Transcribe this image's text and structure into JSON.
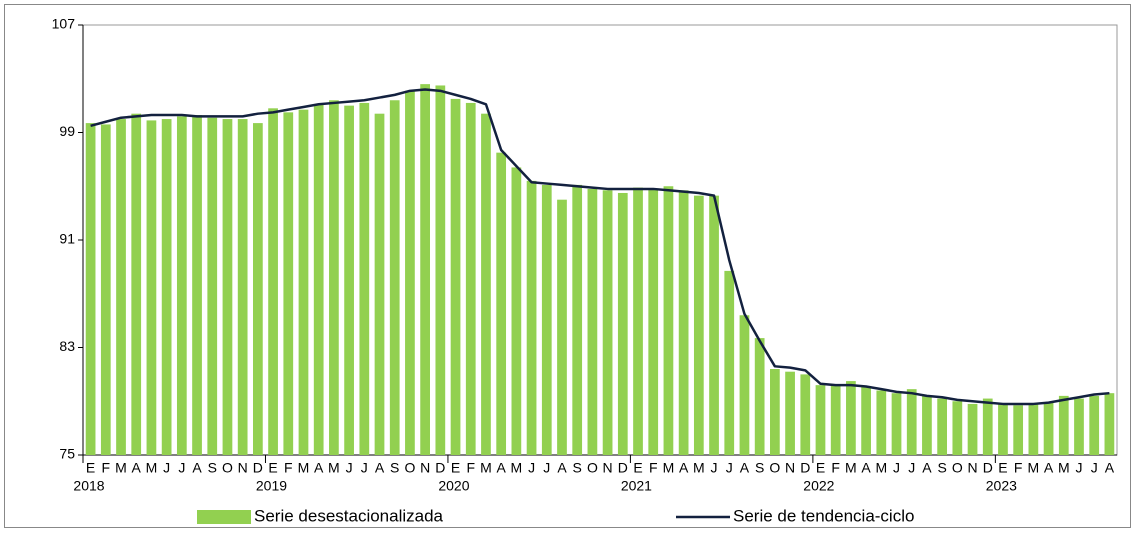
{
  "chart_data": {
    "type": "combo",
    "categories": [
      "E",
      "F",
      "M",
      "A",
      "M",
      "J",
      "J",
      "A",
      "S",
      "O",
      "N",
      "D",
      "E",
      "F",
      "M",
      "A",
      "M",
      "J",
      "J",
      "A",
      "S",
      "O",
      "N",
      "D",
      "E",
      "F",
      "M",
      "A",
      "M",
      "J",
      "J",
      "A",
      "S",
      "O",
      "N",
      "D",
      "E",
      "F",
      "M",
      "A",
      "M",
      "J",
      "J",
      "A",
      "S",
      "O",
      "N",
      "D",
      "E",
      "F",
      "M",
      "A",
      "M",
      "J",
      "J",
      "A",
      "S",
      "O",
      "N",
      "D",
      "E",
      "F",
      "M",
      "A",
      "M",
      "J",
      "J",
      "A"
    ],
    "years": [
      "2018",
      "2019",
      "2020",
      "2021",
      "2022",
      "2023"
    ],
    "ylim": [
      75,
      107
    ],
    "yticks": [
      75,
      83,
      91,
      99,
      107
    ],
    "series": [
      {
        "name": "Serie desestacionalizada",
        "type": "bar",
        "color": "#92d050",
        "values": [
          99.7,
          99.6,
          100.0,
          100.4,
          99.9,
          100.0,
          100.2,
          100.3,
          100.1,
          100.0,
          100.0,
          99.7,
          100.8,
          100.5,
          100.7,
          101.1,
          101.4,
          101.0,
          101.2,
          100.4,
          101.4,
          102.1,
          102.6,
          102.5,
          101.5,
          101.2,
          100.4,
          97.5,
          96.4,
          95.4,
          95.1,
          94.0,
          95.1,
          94.8,
          94.7,
          94.5,
          94.9,
          94.8,
          95.0,
          94.7,
          94.3,
          94.3,
          88.7,
          85.4,
          83.7,
          81.4,
          81.2,
          81.0,
          80.2,
          80.2,
          80.5,
          80.1,
          79.8,
          79.6,
          79.9,
          79.4,
          79.2,
          79.0,
          78.8,
          79.2,
          78.8,
          78.7,
          78.8,
          78.9,
          79.4,
          79.2,
          79.4,
          79.6
        ]
      },
      {
        "name": "Serie de tendencia-ciclo",
        "type": "line",
        "color": "#13213f",
        "values": [
          99.5,
          99.8,
          100.1,
          100.2,
          100.3,
          100.3,
          100.3,
          100.2,
          100.2,
          100.2,
          100.2,
          100.4,
          100.5,
          100.7,
          100.9,
          101.1,
          101.2,
          101.3,
          101.4,
          101.6,
          101.8,
          102.1,
          102.2,
          102.1,
          101.8,
          101.5,
          101.1,
          97.7,
          96.5,
          95.3,
          95.2,
          95.1,
          95.0,
          94.9,
          94.8,
          94.8,
          94.8,
          94.8,
          94.7,
          94.6,
          94.5,
          94.3,
          89.5,
          85.5,
          83.5,
          81.6,
          81.5,
          81.3,
          80.3,
          80.2,
          80.2,
          80.1,
          79.9,
          79.7,
          79.6,
          79.4,
          79.3,
          79.1,
          79.0,
          78.9,
          78.8,
          78.8,
          78.8,
          78.9,
          79.1,
          79.3,
          79.5,
          79.6
        ]
      }
    ]
  }
}
